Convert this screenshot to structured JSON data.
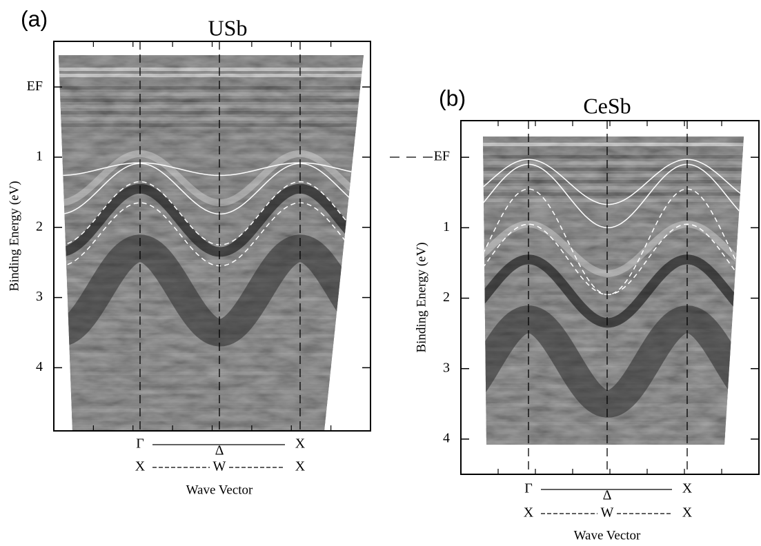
{
  "chart_data": [
    {
      "type": "image",
      "panel_label": "(a)",
      "title": "USb",
      "ylabel": "Binding Energy (eV)",
      "ylim": [
        -0.65,
        4.9
      ],
      "y_inverted": true,
      "yticks": [
        {
          "value": 0,
          "label": "EF"
        },
        1,
        2,
        3,
        4
      ],
      "k_path": {
        "upper": [
          "Γ",
          "Δ",
          "X"
        ],
        "lower": [
          "X",
          "W",
          "X"
        ]
      },
      "xlabel": "Wave Vector"
    },
    {
      "type": "image",
      "panel_label": "(b)",
      "title": "CeSb",
      "ylabel": "Binding Energy (eV)",
      "ylim": [
        -0.52,
        4.5
      ],
      "y_inverted": true,
      "yticks": [
        {
          "value": 0,
          "label": "EF"
        },
        1,
        2,
        3,
        4
      ],
      "k_path": {
        "upper": [
          "Γ",
          "Δ",
          "X"
        ],
        "lower": [
          "X",
          "W",
          "X"
        ]
      },
      "xlabel": "Wave Vector"
    }
  ]
}
